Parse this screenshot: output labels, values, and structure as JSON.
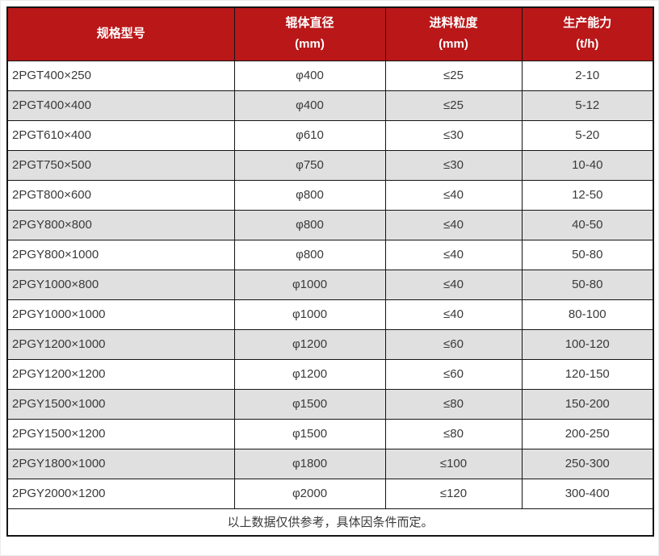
{
  "table": {
    "columns": [
      {
        "label": "规格型号",
        "unit": ""
      },
      {
        "label": "辊体直径",
        "unit": "(mm)"
      },
      {
        "label": "进料粒度",
        "unit": "(mm)"
      },
      {
        "label": "生产能力",
        "unit": "(t/h)"
      }
    ],
    "rows": [
      {
        "model": "2PGT400×250",
        "diameter": "φ400",
        "feed": "≤25",
        "capacity": "2-10"
      },
      {
        "model": "2PGT400×400",
        "diameter": "φ400",
        "feed": "≤25",
        "capacity": "5-12"
      },
      {
        "model": "2PGT610×400",
        "diameter": "φ610",
        "feed": "≤30",
        "capacity": "5-20"
      },
      {
        "model": "2PGT750×500",
        "diameter": "φ750",
        "feed": "≤30",
        "capacity": "10-40"
      },
      {
        "model": "2PGT800×600",
        "diameter": "φ800",
        "feed": "≤40",
        "capacity": "12-50"
      },
      {
        "model": "2PGY800×800",
        "diameter": "φ800",
        "feed": "≤40",
        "capacity": "40-50"
      },
      {
        "model": "2PGY800×1000",
        "diameter": "φ800",
        "feed": "≤40",
        "capacity": "50-80"
      },
      {
        "model": "2PGY1000×800",
        "diameter": "φ1000",
        "feed": "≤40",
        "capacity": "50-80"
      },
      {
        "model": "2PGY1000×1000",
        "diameter": "φ1000",
        "feed": "≤40",
        "capacity": "80-100"
      },
      {
        "model": "2PGY1200×1000",
        "diameter": "φ1200",
        "feed": "≤60",
        "capacity": "100-120"
      },
      {
        "model": "2PGY1200×1200",
        "diameter": "φ1200",
        "feed": "≤60",
        "capacity": "120-150"
      },
      {
        "model": "2PGY1500×1000",
        "diameter": "φ1500",
        "feed": "≤80",
        "capacity": "150-200"
      },
      {
        "model": "2PGY1500×1200",
        "diameter": "φ1500",
        "feed": "≤80",
        "capacity": "200-250"
      },
      {
        "model": "2PGY1800×1000",
        "diameter": "φ1800",
        "feed": "≤100",
        "capacity": "250-300"
      },
      {
        "model": "2PGY2000×1200",
        "diameter": "φ2000",
        "feed": "≤120",
        "capacity": "300-400"
      }
    ],
    "footnote": "以上数据仅供参考，具体因条件而定。"
  },
  "colors": {
    "header_bg": "#ba1719",
    "header_text": "#ffffff",
    "row_alt_bg": "#e0e0e0",
    "border": "#141414",
    "body_text": "#3a3a3a"
  }
}
